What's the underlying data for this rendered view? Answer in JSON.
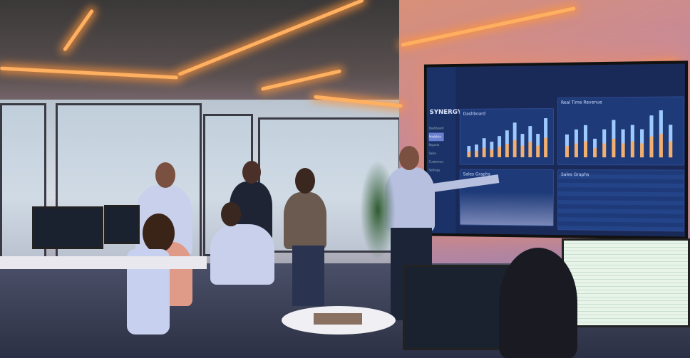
{
  "screen": {
    "brand": "SYNERGY",
    "nav_items": [
      "Dashboard",
      "Analytics",
      "Reports",
      "Sales",
      "Customers",
      "Settings"
    ],
    "panels": [
      "Dashboard",
      "Real Time Revenue",
      "Sales Graphs",
      "Sales Graphs"
    ],
    "revenue_bars": [
      0.3,
      0.32,
      0.5,
      0.4,
      0.55,
      0.7,
      0.9,
      0.6,
      0.8,
      0.6,
      1.0
    ],
    "combo_bars": [
      0.5,
      0.6,
      0.7,
      0.4,
      0.6,
      0.8,
      0.6,
      0.7,
      0.6,
      0.9,
      1.0,
      0.7
    ],
    "colors": {
      "bar_blue": "#9ecbff",
      "bar_orange": "#f2b070",
      "screen_bg": "#1a2a58"
    }
  }
}
